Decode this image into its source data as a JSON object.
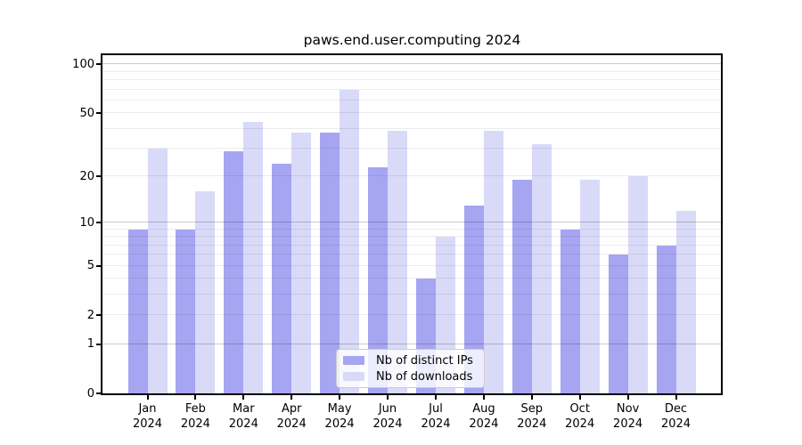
{
  "title": "paws.end.user.computing 2024",
  "chart_data": {
    "type": "bar",
    "title": "paws.end.user.computing 2024",
    "categories": [
      "Jan 2024",
      "Feb 2024",
      "Mar 2024",
      "Apr 2024",
      "May 2024",
      "Jun 2024",
      "Jul 2024",
      "Aug 2024",
      "Sep 2024",
      "Oct 2024",
      "Nov 2024",
      "Dec 2024"
    ],
    "series": [
      {
        "name": "Nb of distinct IPs",
        "color": "#a5a5f2",
        "values": [
          9,
          9,
          29,
          24,
          38,
          23,
          4,
          13,
          19,
          9,
          6,
          7
        ]
      },
      {
        "name": "Nb of downloads",
        "color": "#d9d9f8",
        "values": [
          30,
          16,
          44,
          38,
          70,
          39,
          8,
          39,
          32,
          19,
          20,
          12
        ]
      }
    ],
    "xlabel": "",
    "ylabel": "",
    "yscale": "log1p",
    "ylim": [
      0,
      113
    ],
    "yticks": [
      0,
      1,
      2,
      5,
      10,
      20,
      50,
      100
    ],
    "grid": {
      "major": [
        1,
        10,
        100
      ],
      "minor": [
        2,
        3,
        4,
        5,
        6,
        7,
        8,
        9,
        20,
        30,
        40,
        50,
        60,
        70,
        80,
        90
      ]
    },
    "legend_position": "lower center",
    "axis_color": "#000000",
    "background_color": "#ffffff"
  }
}
